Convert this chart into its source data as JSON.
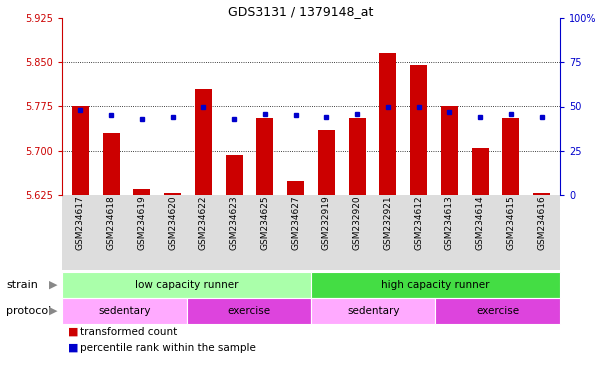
{
  "title": "GDS3131 / 1379148_at",
  "samples": [
    "GSM234617",
    "GSM234618",
    "GSM234619",
    "GSM234620",
    "GSM234622",
    "GSM234623",
    "GSM234625",
    "GSM234627",
    "GSM232919",
    "GSM232920",
    "GSM232921",
    "GSM234612",
    "GSM234613",
    "GSM234614",
    "GSM234615",
    "GSM234616"
  ],
  "transformed_count": [
    5.775,
    5.73,
    5.635,
    5.628,
    5.805,
    5.693,
    5.755,
    5.648,
    5.735,
    5.755,
    5.865,
    5.845,
    5.775,
    5.705,
    5.755,
    5.628
  ],
  "percentile_rank": [
    48,
    45,
    43,
    44,
    50,
    43,
    46,
    45,
    44,
    46,
    50,
    50,
    47,
    44,
    46,
    44
  ],
  "ylim": [
    5.625,
    5.925
  ],
  "yticks": [
    5.625,
    5.7,
    5.775,
    5.85,
    5.925
  ],
  "right_ylim": [
    0,
    100
  ],
  "right_yticks": [
    0,
    25,
    50,
    75,
    100
  ],
  "bar_color": "#cc0000",
  "dot_color": "#0000cc",
  "bar_width": 0.55,
  "strain_groups": [
    {
      "label": "low capacity runner",
      "start": 0,
      "end": 8,
      "color": "#aaffaa"
    },
    {
      "label": "high capacity runner",
      "start": 8,
      "end": 16,
      "color": "#44dd44"
    }
  ],
  "protocol_groups": [
    {
      "label": "sedentary",
      "start": 0,
      "end": 4,
      "color": "#ffaaff"
    },
    {
      "label": "exercise",
      "start": 4,
      "end": 8,
      "color": "#dd44dd"
    },
    {
      "label": "sedentary",
      "start": 8,
      "end": 12,
      "color": "#ffaaff"
    },
    {
      "label": "exercise",
      "start": 12,
      "end": 16,
      "color": "#dd44dd"
    }
  ],
  "strain_label": "strain",
  "protocol_label": "protocol",
  "tick_color_left": "#cc0000",
  "tick_color_right": "#0000cc",
  "bg_color": "#ffffff"
}
